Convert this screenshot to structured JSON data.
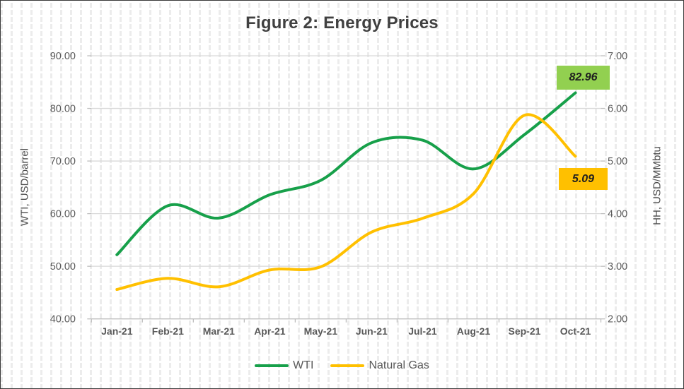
{
  "chart_data": {
    "type": "line",
    "title": "Figure 2: Energy Prices",
    "categories": [
      "Jan-21",
      "Feb-21",
      "Mar-21",
      "Apr-21",
      "May-21",
      "Jun-21",
      "Jul-21",
      "Aug-21",
      "Sep-21",
      "Oct-21"
    ],
    "series": [
      {
        "name": "WTI",
        "axis": "left",
        "color": "#17a04a",
        "values": [
          52.2,
          61.5,
          59.16,
          63.58,
          66.32,
          73.47,
          73.95,
          68.5,
          75.03,
          82.96
        ]
      },
      {
        "name": "Natural Gas",
        "axis": "right",
        "color": "#ffc000",
        "values": [
          2.56,
          2.77,
          2.61,
          2.93,
          2.99,
          3.65,
          3.91,
          4.38,
          5.87,
          5.09
        ]
      }
    ],
    "axes": {
      "left": {
        "label": "WTI, USD/barrel",
        "min": 40,
        "max": 90,
        "tick_labels": [
          "90.00",
          "80.00",
          "70.00",
          "60.00",
          "50.00",
          "40.00"
        ]
      },
      "right": {
        "label": "HH, USD/MMbtu",
        "min": 2,
        "max": 7,
        "tick_labels": [
          "7.00",
          "6.00",
          "5.00",
          "4.00",
          "3.00",
          "2.00"
        ]
      }
    },
    "grid": "horizontal-only",
    "smoothed": true,
    "legend_position": "bottom",
    "annotations": [
      {
        "label": "82.96",
        "series": "WTI",
        "category": "Oct-21",
        "bg_color": "#92d050"
      },
      {
        "label": "5.09",
        "series": "Natural Gas",
        "category": "Oct-21",
        "bg_color": "#ffc000"
      }
    ]
  },
  "style": {
    "grid_color": "#d9d9d9",
    "axis_line_color": "#bfbfbf",
    "tick_text_color": "#595959",
    "title_color": "#404040"
  }
}
